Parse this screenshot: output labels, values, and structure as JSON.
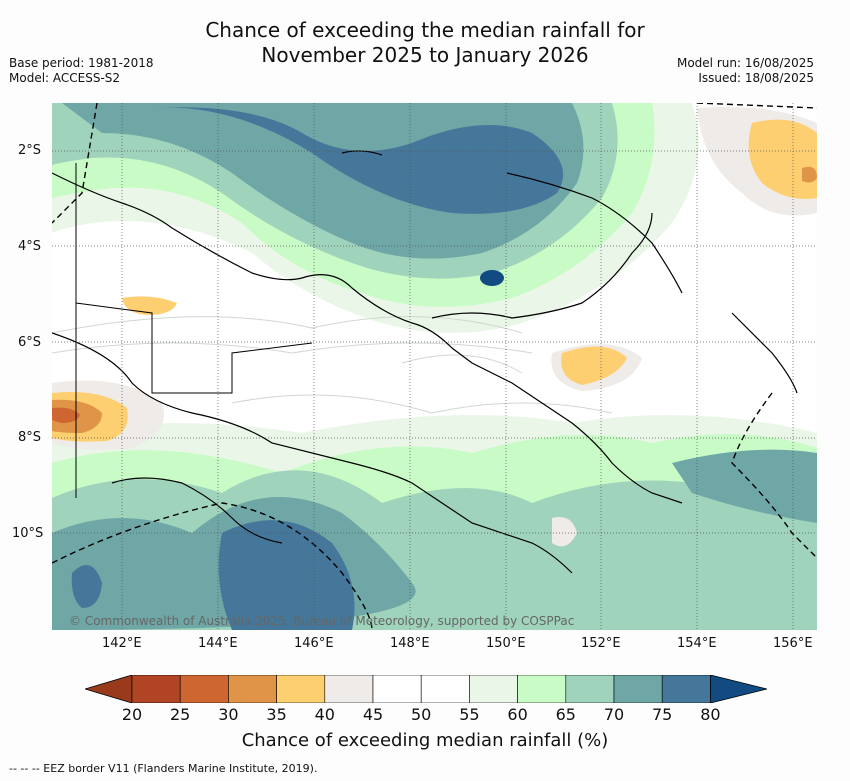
{
  "title_line1": "Chance of exceeding the median rainfall for",
  "title_line2": "November 2025 to January 2026",
  "base_period": "Base period: 1981-2018",
  "model": "Model: ACCESS-S2",
  "model_run": "Model run: 16/08/2025",
  "issued": "Issued: 18/08/2025",
  "copyright": "© Commonwealth of Australia 2025, Bureau of Meteorology, supported by COSPPac",
  "lat_labels": [
    "2°S",
    "4°S",
    "6°S",
    "8°S",
    "10°S"
  ],
  "lon_labels": [
    "142°E",
    "144°E",
    "146°E",
    "148°E",
    "150°E",
    "152°E",
    "154°E",
    "156°E"
  ],
  "colorbar": {
    "ticks": [
      "20",
      "25",
      "30",
      "35",
      "40",
      "45",
      "50",
      "55",
      "60",
      "65",
      "70",
      "75",
      "80"
    ],
    "colors": [
      "#b04425",
      "#cd6630",
      "#e09447",
      "#fdcf70",
      "#efebe8",
      "#ffffff",
      "#ffffff",
      "#eaf6e8",
      "#c9fbc6",
      "#9fd3bb",
      "#6fa6a6",
      "#45779a"
    ],
    "under_color": "#9a3a1d",
    "over_color": "#114b82",
    "label": "Chance of exceeding median rainfall (%)"
  },
  "legend_text": "--  --  -- EEZ border V11 (Flanders Marine Institute, 2019)."
}
